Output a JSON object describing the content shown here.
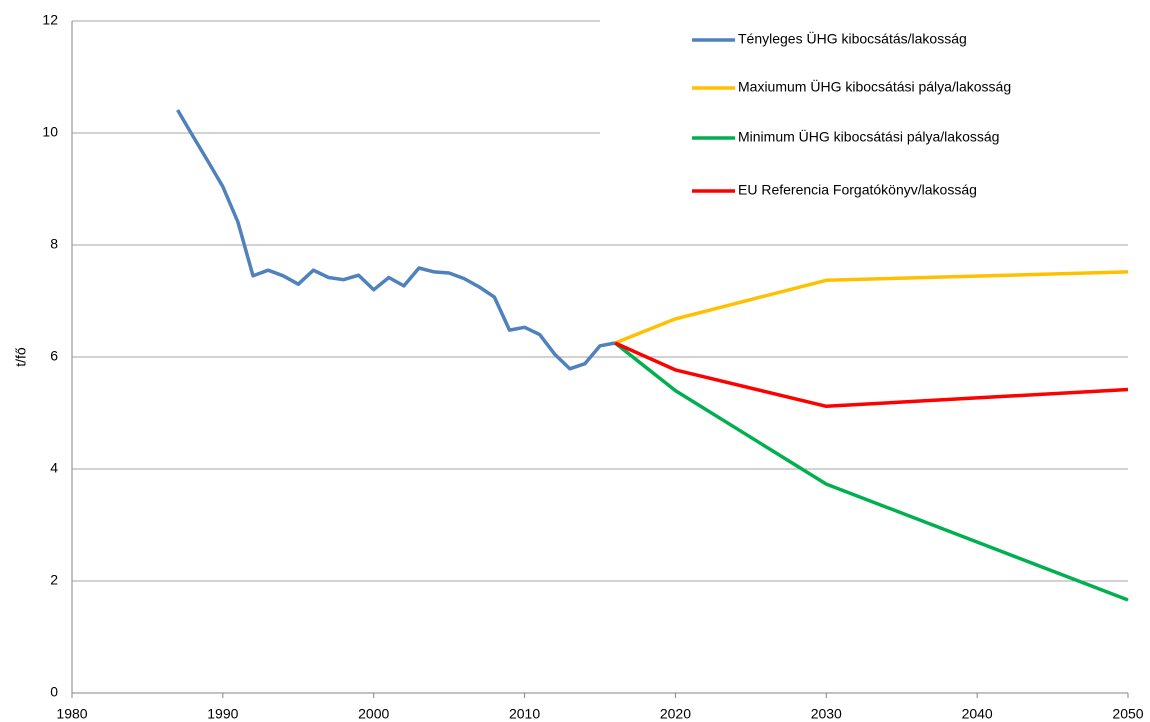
{
  "chart_data": {
    "type": "line",
    "y_label": "t/fő",
    "xlim": [
      1980,
      2050
    ],
    "xticks": [
      1980,
      1990,
      2000,
      2010,
      2020,
      2030,
      2040,
      2050
    ],
    "ylim": [
      0,
      12
    ],
    "yticks": [
      0,
      2,
      4,
      6,
      8,
      10,
      12
    ],
    "grid": true,
    "legend": "upper right",
    "series": [
      {
        "name": "Tényleges ÜHG kibocsátás/lakosság",
        "color": "#4f81bd",
        "x": [
          1987,
          1988,
          1989,
          1990,
          1991,
          1992,
          1993,
          1994,
          1995,
          1996,
          1997,
          1998,
          1999,
          2000,
          2001,
          2002,
          2003,
          2004,
          2005,
          2006,
          2007,
          2008,
          2009,
          2010,
          2011,
          2012,
          2013,
          2014,
          2015,
          2016
        ],
        "values": [
          10.41,
          9.95,
          9.5,
          9.04,
          8.41,
          7.45,
          7.55,
          7.45,
          7.3,
          7.55,
          7.42,
          7.38,
          7.46,
          7.2,
          7.42,
          7.27,
          7.59,
          7.52,
          7.5,
          7.4,
          7.25,
          7.07,
          6.48,
          6.53,
          6.4,
          6.05,
          5.79,
          5.88,
          6.2,
          6.25
        ]
      },
      {
        "name": "Maxiumum ÜHG kibocsátási pálya/lakosság",
        "color": "#ffc000",
        "x": [
          2016,
          2020,
          2030,
          2050
        ],
        "values": [
          6.25,
          6.68,
          7.37,
          7.52
        ]
      },
      {
        "name": "Minimum ÜHG kibocsátási pálya/lakosság",
        "color": "#00b050",
        "x": [
          2016,
          2020,
          2030,
          2050
        ],
        "values": [
          6.25,
          5.4,
          3.73,
          1.66
        ]
      },
      {
        "name": "EU Referencia Forgatókönyv/lakosság",
        "color": "#ff0000",
        "x": [
          2016,
          2020,
          2030,
          2050
        ],
        "values": [
          6.25,
          5.77,
          5.12,
          5.42
        ]
      }
    ]
  }
}
